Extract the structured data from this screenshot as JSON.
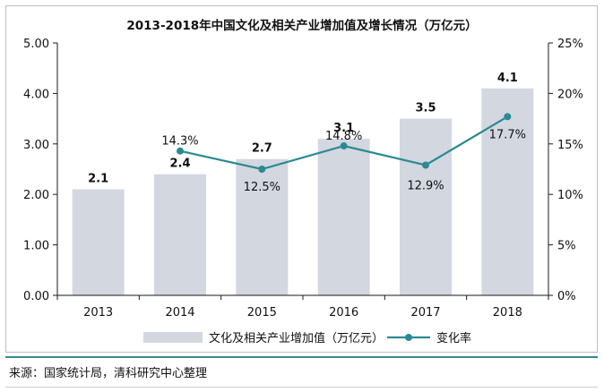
{
  "chart_data": {
    "type": "bar",
    "title": "2013-2018年中国文化及相关产业增加值及增长情况（万亿元）",
    "categories": [
      "2013",
      "2014",
      "2015",
      "2016",
      "2017",
      "2018"
    ],
    "series": [
      {
        "name": "文化及相关产业增加值（万亿元）",
        "type": "bar",
        "axis": "left",
        "values": [
          2.1,
          2.4,
          2.7,
          3.1,
          3.5,
          4.1
        ],
        "labels": [
          "2.1",
          "2.4",
          "2.7",
          "3.1",
          "3.5",
          "4.1"
        ],
        "color": "#d3d7e0"
      },
      {
        "name": "变化率",
        "type": "line",
        "axis": "right",
        "values": [
          null,
          14.3,
          12.5,
          14.8,
          12.9,
          17.7
        ],
        "labels": [
          "",
          "14.3%",
          "12.5%",
          "14.8%",
          "12.9%",
          "17.7%"
        ],
        "color": "#2a8a92"
      }
    ],
    "y_left": {
      "lim": [
        0,
        5
      ],
      "ticks": [
        "0.00",
        "1.00",
        "2.00",
        "3.00",
        "4.00",
        "5.00"
      ]
    },
    "y_right": {
      "lim": [
        0,
        25
      ],
      "ticks": [
        "0%",
        "5%",
        "10%",
        "15%",
        "20%",
        "25%"
      ]
    },
    "grid": false,
    "legend_position": "bottom"
  },
  "source_note": "来源：国家统计局，清科研究中心整理"
}
